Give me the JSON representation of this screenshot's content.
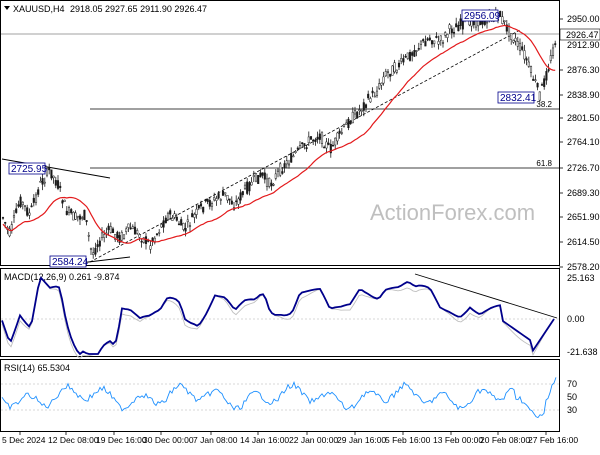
{
  "header": {
    "symbol": "XAUUSD,H4",
    "ohlc": "2918.05 2927.65 2911.90 2926.47",
    "menu_icon": "triangle-down-icon"
  },
  "price_axis": {
    "ticks": [
      "2950.00",
      "2912.90",
      "2876.30",
      "2838.90",
      "2801.50",
      "2764.10",
      "2726.70",
      "2689.30",
      "2651.90",
      "2614.50",
      "2578.20"
    ],
    "current_price": "2926.47"
  },
  "annotations": {
    "high_label": "2956.09",
    "low_label_recent": "2832.41",
    "left_high_label": "2725.95",
    "left_low_label": "2584.24",
    "fib_382": "38.2",
    "fib_618": "61.8"
  },
  "watermark": "ActionForex.com",
  "macd": {
    "title": "MACD(12,26,9) 0.261 -9.874",
    "ticks": [
      "25.163",
      "0.00",
      "-21.638"
    ]
  },
  "rsi": {
    "title": "RSI(14) 65.5304",
    "ticks": [
      "70",
      "50",
      "30"
    ]
  },
  "time_axis": {
    "labels": [
      "5 Dec 2024",
      "12 Dec 08:00",
      "19 Dec 16:00",
      "30 Dec 00:00",
      "7 Jan 08:00",
      "14 Jan 16:00",
      "22 Jan 00:00",
      "29 Jan 16:00",
      "5 Feb 16:00",
      "13 Feb 00:00",
      "20 Feb 08:00",
      "27 Feb 16:00"
    ]
  },
  "colors": {
    "ma_line": "#e31a1c",
    "macd_line": "#00008b",
    "signal_line": "#c0c0c0",
    "rsi_line": "#1e90ff",
    "candle": "#1a1a1a",
    "label_border": "#00008b"
  },
  "chart_data": {
    "type": "line",
    "title": "XAUUSD,H4",
    "series": [
      {
        "name": "XAUUSD,H4",
        "x": [
          "5 Dec 2024",
          "12 Dec 08:00",
          "19 Dec 16:00",
          "30 Dec 00:00",
          "7 Jan 08:00",
          "14 Jan 16:00",
          "22 Jan 00:00",
          "29 Jan 16:00",
          "5 Feb 16:00",
          "13 Feb 00:00",
          "20 Feb 08:00",
          "27 Feb 16:00"
        ],
        "y": [
          2640,
          2725,
          2600,
          2620,
          2660,
          2690,
          2740,
          2770,
          2860,
          2910,
          2950,
          2870
        ]
      }
    ],
    "ylim": [
      2570,
      2965
    ]
  }
}
